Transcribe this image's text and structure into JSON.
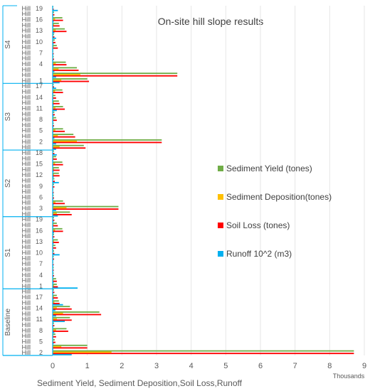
{
  "chart_data": {
    "type": "bar",
    "orientation": "horizontal",
    "title": "On-site hill slope results",
    "xlabel": "Sediment Yield, Sediment Deposition,Soil Loss,Runoff",
    "x_unit": "Thousands",
    "xlim": [
      0,
      9
    ],
    "x_ticks": [
      "0",
      "1",
      "2",
      "3",
      "4",
      "5",
      "6",
      "7",
      "8",
      "9"
    ],
    "legend_position": "right",
    "series": [
      {
        "name": "Runoff 10^2 (m3)",
        "color": "#00B0F0"
      },
      {
        "name": "Soil Loss (tones)",
        "color": "#FF0000"
      },
      {
        "name": "Sediment Deposition(tones)",
        "color": "#FFC000"
      },
      {
        "name": "Sediment Yield (tones)",
        "color": "#70AD47"
      }
    ],
    "groups": [
      {
        "name": "Baseline",
        "categories": [
          {
            "label": "Hill",
            "number": "2",
            "runoff": 0.55,
            "soil_loss": 8.7,
            "deposition": 1.7,
            "sediment_yield": 8.7
          },
          {
            "label": "Hill",
            "number": "",
            "runoff": 0.02,
            "soil_loss": 1.0,
            "deposition": 0.25,
            "sediment_yield": 1.0
          },
          {
            "label": "Hill",
            "number": "5",
            "runoff": 0.03,
            "soil_loss": 0.08,
            "deposition": 0.02,
            "sediment_yield": 0.06
          },
          {
            "label": "Hill",
            "number": "",
            "runoff": 0.02,
            "soil_loss": 0.1,
            "deposition": 0.02,
            "sediment_yield": 0.08
          },
          {
            "label": "Hill",
            "number": "8",
            "runoff": 0.05,
            "soil_loss": 0.45,
            "deposition": 0.1,
            "sediment_yield": 0.4
          },
          {
            "label": "Hill",
            "number": "",
            "runoff": 0.02,
            "soil_loss": 0.05,
            "deposition": 0.01,
            "sediment_yield": 0.04
          },
          {
            "label": "Hill",
            "number": "11",
            "runoff": 0.35,
            "soil_loss": 0.55,
            "deposition": 0.12,
            "sediment_yield": 0.5
          },
          {
            "label": "Hill",
            "number": "",
            "runoff": 0.1,
            "soil_loss": 1.4,
            "deposition": 0.3,
            "sediment_yield": 1.35
          },
          {
            "label": "Hill",
            "number": "14",
            "runoff": 0.08,
            "soil_loss": 0.55,
            "deposition": 0.12,
            "sediment_yield": 0.5
          },
          {
            "label": "Hill",
            "number": "",
            "runoff": 0.3,
            "soil_loss": 0.2,
            "deposition": 0.05,
            "sediment_yield": 0.18
          },
          {
            "label": "Hill",
            "number": "17",
            "runoff": 0.03,
            "soil_loss": 0.15,
            "deposition": 0.04,
            "sediment_yield": 0.12
          },
          {
            "label": "Hill",
            "number": "",
            "runoff": 0.02,
            "soil_loss": 0.05,
            "deposition": 0.01,
            "sediment_yield": 0.04
          }
        ]
      },
      {
        "name": "S1",
        "categories": [
          {
            "label": "Hill",
            "number": "1",
            "runoff": 0.72,
            "soil_loss": 0.15,
            "deposition": 0.04,
            "sediment_yield": 0.12
          },
          {
            "label": "Hill",
            "number": "",
            "runoff": 0.03,
            "soil_loss": 0.12,
            "deposition": 0.03,
            "sediment_yield": 0.1
          },
          {
            "label": "Hill",
            "number": "4",
            "runoff": 0.02,
            "soil_loss": 0.04,
            "deposition": 0.01,
            "sediment_yield": 0.03
          },
          {
            "label": "Hill",
            "number": "",
            "runoff": 0.02,
            "soil_loss": 0.03,
            "deposition": 0.01,
            "sediment_yield": 0.03
          },
          {
            "label": "Hill",
            "number": "7",
            "runoff": 0.02,
            "soil_loss": 0.03,
            "deposition": 0.01,
            "sediment_yield": 0.02
          },
          {
            "label": "Hill",
            "number": "",
            "runoff": 0.02,
            "soil_loss": 0.04,
            "deposition": 0.01,
            "sediment_yield": 0.03
          },
          {
            "label": "Hill",
            "number": "10",
            "runoff": 0.2,
            "soil_loss": 0.05,
            "deposition": 0.01,
            "sediment_yield": 0.04
          },
          {
            "label": "Hill",
            "number": "",
            "runoff": 0.02,
            "soil_loss": 0.1,
            "deposition": 0.02,
            "sediment_yield": 0.08
          },
          {
            "label": "Hill",
            "number": "13",
            "runoff": 0.03,
            "soil_loss": 0.18,
            "deposition": 0.04,
            "sediment_yield": 0.15
          },
          {
            "label": "Hill",
            "number": "",
            "runoff": 0.02,
            "soil_loss": 0.05,
            "deposition": 0.01,
            "sediment_yield": 0.04
          },
          {
            "label": "Hill",
            "number": "16",
            "runoff": 0.04,
            "soil_loss": 0.3,
            "deposition": 0.07,
            "sediment_yield": 0.28
          },
          {
            "label": "Hill",
            "number": "",
            "runoff": 0.02,
            "soil_loss": 0.15,
            "deposition": 0.03,
            "sediment_yield": 0.12
          },
          {
            "label": "Hill",
            "number": "19",
            "runoff": 0.03,
            "soil_loss": 0.05,
            "deposition": 0.01,
            "sediment_yield": 0.04
          }
        ]
      },
      {
        "name": "S2",
        "categories": [
          {
            "label": "Hill",
            "number": "",
            "runoff": 0.15,
            "soil_loss": 0.55,
            "deposition": 0.12,
            "sediment_yield": 0.5
          },
          {
            "label": "Hill",
            "number": "3",
            "runoff": 0.1,
            "soil_loss": 1.9,
            "deposition": 0.4,
            "sediment_yield": 1.9
          },
          {
            "label": "Hill",
            "number": "",
            "runoff": 0.03,
            "soil_loss": 0.35,
            "deposition": 0.08,
            "sediment_yield": 0.3
          },
          {
            "label": "Hill",
            "number": "6",
            "runoff": 0.02,
            "soil_loss": 0.04,
            "deposition": 0.01,
            "sediment_yield": 0.03
          },
          {
            "label": "Hill",
            "number": "",
            "runoff": 0.02,
            "soil_loss": 0.03,
            "deposition": 0.01,
            "sediment_yield": 0.02
          },
          {
            "label": "Hill",
            "number": "9",
            "runoff": 0.02,
            "soil_loss": 0.05,
            "deposition": 0.01,
            "sediment_yield": 0.04
          },
          {
            "label": "Hill",
            "number": "",
            "runoff": 0.18,
            "soil_loss": 0.06,
            "deposition": 0.01,
            "sediment_yield": 0.05
          },
          {
            "label": "Hill",
            "number": "12",
            "runoff": 0.03,
            "soil_loss": 0.2,
            "deposition": 0.04,
            "sediment_yield": 0.18
          },
          {
            "label": "Hill",
            "number": "",
            "runoff": 0.03,
            "soil_loss": 0.2,
            "deposition": 0.04,
            "sediment_yield": 0.18
          },
          {
            "label": "Hill",
            "number": "15",
            "runoff": 0.02,
            "soil_loss": 0.3,
            "deposition": 0.07,
            "sediment_yield": 0.28
          },
          {
            "label": "Hill",
            "number": "",
            "runoff": 0.02,
            "soil_loss": 0.12,
            "deposition": 0.03,
            "sediment_yield": 0.1
          },
          {
            "label": "Hill",
            "number": "18",
            "runoff": 0.12,
            "soil_loss": 0.05,
            "deposition": 0.01,
            "sediment_yield": 0.04
          }
        ]
      },
      {
        "name": "S3",
        "categories": [
          {
            "label": "Hill",
            "number": "",
            "runoff": 0.1,
            "soil_loss": 0.95,
            "deposition": 0.2,
            "sediment_yield": 0.9
          },
          {
            "label": "Hill",
            "number": "2",
            "runoff": 0.1,
            "soil_loss": 3.15,
            "deposition": 0.7,
            "sediment_yield": 3.15
          },
          {
            "label": "Hill",
            "number": "",
            "runoff": 0.05,
            "soil_loss": 0.65,
            "deposition": 0.15,
            "sediment_yield": 0.6
          },
          {
            "label": "Hill",
            "number": "5",
            "runoff": 0.02,
            "soil_loss": 0.35,
            "deposition": 0.08,
            "sediment_yield": 0.3
          },
          {
            "label": "Hill",
            "number": "",
            "runoff": 0.02,
            "soil_loss": 0.04,
            "deposition": 0.01,
            "sediment_yield": 0.03
          },
          {
            "label": "Hill",
            "number": "8",
            "runoff": 0.02,
            "soil_loss": 0.12,
            "deposition": 0.03,
            "sediment_yield": 0.1
          },
          {
            "label": "Hill",
            "number": "",
            "runoff": 0.03,
            "soil_loss": 0.06,
            "deposition": 0.01,
            "sediment_yield": 0.05
          },
          {
            "label": "Hill",
            "number": "11",
            "runoff": 0.12,
            "soil_loss": 0.35,
            "deposition": 0.08,
            "sediment_yield": 0.3
          },
          {
            "label": "Hill",
            "number": "",
            "runoff": 0.03,
            "soil_loss": 0.2,
            "deposition": 0.04,
            "sediment_yield": 0.18
          },
          {
            "label": "Hill",
            "number": "14",
            "runoff": 0.02,
            "soil_loss": 0.1,
            "deposition": 0.02,
            "sediment_yield": 0.08
          },
          {
            "label": "Hill",
            "number": "",
            "runoff": 0.02,
            "soil_loss": 0.3,
            "deposition": 0.07,
            "sediment_yield": 0.28
          },
          {
            "label": "Hill",
            "number": "17",
            "runoff": 0.1,
            "soil_loss": 0.04,
            "deposition": 0.01,
            "sediment_yield": 0.03
          }
        ]
      },
      {
        "name": "S4",
        "categories": [
          {
            "label": "Hill",
            "number": "1",
            "runoff": 0.2,
            "soil_loss": 1.05,
            "deposition": 0.25,
            "sediment_yield": 1.0
          },
          {
            "label": "Hill",
            "number": "",
            "runoff": 0.1,
            "soil_loss": 3.6,
            "deposition": 0.8,
            "sediment_yield": 3.6
          },
          {
            "label": "Hill",
            "number": "",
            "runoff": 0.05,
            "soil_loss": 0.75,
            "deposition": 0.17,
            "sediment_yield": 0.7
          },
          {
            "label": "Hill",
            "number": "4",
            "runoff": 0.03,
            "soil_loss": 0.4,
            "deposition": 0.09,
            "sediment_yield": 0.38
          },
          {
            "label": "Hill",
            "number": "",
            "runoff": 0.02,
            "soil_loss": 0.04,
            "deposition": 0.01,
            "sediment_yield": 0.03
          },
          {
            "label": "Hill",
            "number": "7",
            "runoff": 0.02,
            "soil_loss": 0.03,
            "deposition": 0.01,
            "sediment_yield": 0.02
          },
          {
            "label": "Hill",
            "number": "",
            "runoff": 0.02,
            "soil_loss": 0.15,
            "deposition": 0.03,
            "sediment_yield": 0.12
          },
          {
            "label": "Hill",
            "number": "10",
            "runoff": 0.03,
            "soil_loss": 0.08,
            "deposition": 0.02,
            "sediment_yield": 0.06
          },
          {
            "label": "Hill",
            "number": "",
            "runoff": 0.1,
            "soil_loss": 0.05,
            "deposition": 0.01,
            "sediment_yield": 0.04
          },
          {
            "label": "Hill",
            "number": "13",
            "runoff": 0.05,
            "soil_loss": 0.4,
            "deposition": 0.09,
            "sediment_yield": 0.35
          },
          {
            "label": "Hill",
            "number": "",
            "runoff": 0.02,
            "soil_loss": 0.2,
            "deposition": 0.04,
            "sediment_yield": 0.18
          },
          {
            "label": "Hill",
            "number": "16",
            "runoff": 0.03,
            "soil_loss": 0.3,
            "deposition": 0.07,
            "sediment_yield": 0.28
          },
          {
            "label": "Hill",
            "number": "",
            "runoff": 0.02,
            "soil_loss": 0.05,
            "deposition": 0.01,
            "sediment_yield": 0.04
          },
          {
            "label": "Hill",
            "number": "19",
            "runoff": 0.15,
            "soil_loss": 0.03,
            "deposition": 0.01,
            "sediment_yield": 0.02
          }
        ]
      }
    ]
  }
}
